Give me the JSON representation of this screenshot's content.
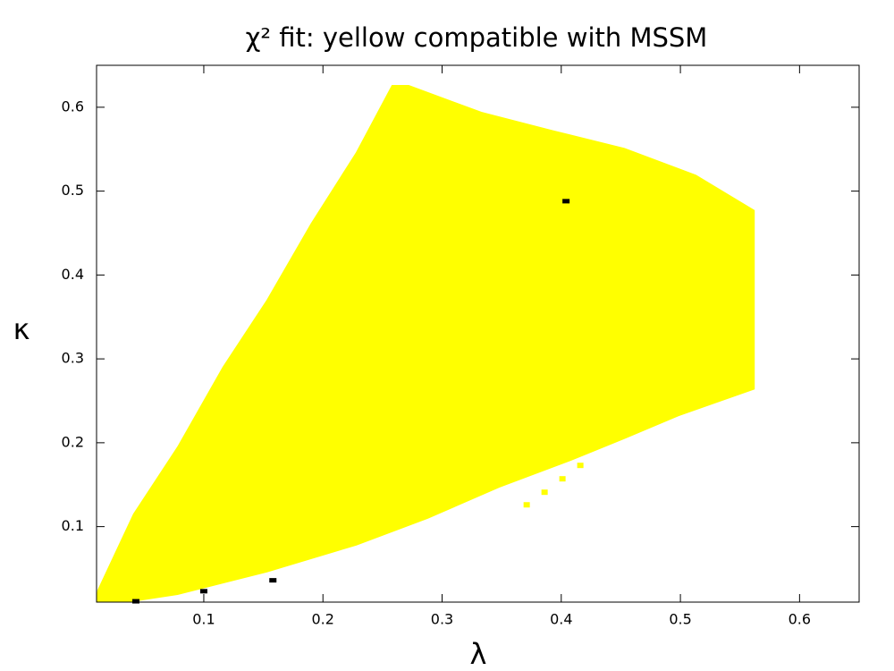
{
  "chart_data": {
    "type": "region",
    "title": "χ² fit: yellow compatible with MSSM",
    "xlabel": "λ",
    "ylabel": "κ",
    "xlim": [
      0.01,
      0.65
    ],
    "ylim": [
      0.01,
      0.65
    ],
    "xticks": [
      0.1,
      0.2,
      0.3,
      0.4,
      0.5,
      0.6
    ],
    "yticks": [
      0.1,
      0.2,
      0.3,
      0.4,
      0.5,
      0.6
    ],
    "series": [
      {
        "color": "#ffff00",
        "mark": "polygon",
        "x": [
          0.01,
          0.011,
          0.041,
          0.078,
          0.116,
          0.153,
          0.19,
          0.228,
          0.258,
          0.272,
          0.333,
          0.393,
          0.453,
          0.513,
          0.562,
          0.562,
          0.498,
          0.453,
          0.408,
          0.348,
          0.288,
          0.228,
          0.153,
          0.078,
          0.041
        ],
        "y": [
          0.01,
          0.024,
          0.115,
          0.195,
          0.29,
          0.37,
          0.461,
          0.546,
          0.626,
          0.626,
          0.594,
          0.572,
          0.551,
          0.519,
          0.477,
          0.264,
          0.232,
          0.205,
          0.179,
          0.147,
          0.11,
          0.078,
          0.046,
          0.019,
          0.011
        ]
      },
      {
        "color": "#ffff00",
        "mark": "square",
        "x": [
          0.371,
          0.386,
          0.401,
          0.416
        ],
        "y": [
          0.126,
          0.141,
          0.157,
          0.173
        ]
      },
      {
        "color": "#000000",
        "mark": "square",
        "x": [
          0.043,
          0.1,
          0.158,
          0.404
        ],
        "y": [
          0.011,
          0.023,
          0.036,
          0.488
        ]
      }
    ]
  }
}
